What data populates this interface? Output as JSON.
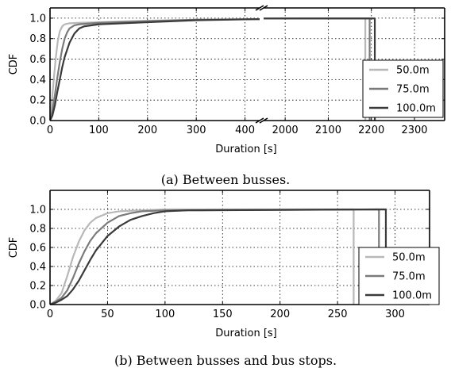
{
  "figure": {
    "caption_a": "(a) Between busses.",
    "caption_b": "(b) Between busses and bus stops."
  },
  "chart_data": [
    {
      "type": "line",
      "subplot": "a",
      "broken_x_axis": true,
      "xlabel": "Duration [s]",
      "ylabel": "CDF",
      "ylim": [
        0,
        1.1
      ],
      "yticks": [
        0.0,
        0.2,
        0.4,
        0.6,
        0.8,
        1.0
      ],
      "left_panel": {
        "xlim": [
          0,
          430
        ],
        "xticks": [
          0,
          100,
          200,
          300,
          400
        ]
      },
      "right_panel": {
        "xlim": [
          1950,
          2370
        ],
        "xticks": [
          2000,
          2100,
          2200,
          2300
        ]
      },
      "grid": true,
      "legend": "bottom-right",
      "colors": {
        "50.0m": "#b8b8b8",
        "75.0m": "#7a7a7a",
        "100.0m": "#3a3a3a"
      },
      "series": [
        {
          "name": "50.0m",
          "x": [
            0,
            4,
            8,
            12,
            16,
            20,
            25,
            30,
            40,
            60,
            100,
            200,
            300,
            420,
            2186,
            2186
          ],
          "y": [
            0,
            0.2,
            0.42,
            0.62,
            0.78,
            0.87,
            0.92,
            0.94,
            0.95,
            0.955,
            0.96,
            0.975,
            0.985,
            0.99,
            0.998,
            0
          ]
        },
        {
          "name": "75.0m",
          "x": [
            0,
            5,
            10,
            15,
            20,
            25,
            30,
            35,
            40,
            50,
            60,
            100,
            200,
            300,
            420,
            2196,
            2196
          ],
          "y": [
            0,
            0.1,
            0.25,
            0.42,
            0.57,
            0.7,
            0.8,
            0.86,
            0.9,
            0.93,
            0.94,
            0.955,
            0.97,
            0.985,
            0.99,
            0.998,
            0
          ]
        },
        {
          "name": "100.0m",
          "x": [
            0,
            5,
            10,
            15,
            20,
            25,
            30,
            40,
            50,
            60,
            70,
            100,
            200,
            300,
            420,
            2208,
            2208
          ],
          "y": [
            0,
            0.05,
            0.15,
            0.28,
            0.4,
            0.52,
            0.62,
            0.76,
            0.85,
            0.9,
            0.92,
            0.94,
            0.96,
            0.98,
            0.99,
            0.998,
            0
          ]
        }
      ]
    },
    {
      "type": "line",
      "subplot": "b",
      "xlabel": "Duration [s]",
      "ylabel": "CDF",
      "xlim": [
        0,
        330
      ],
      "ylim": [
        0,
        1.2
      ],
      "xticks": [
        0,
        50,
        100,
        150,
        200,
        250,
        300
      ],
      "yticks": [
        0.0,
        0.2,
        0.4,
        0.6,
        0.8,
        1.0
      ],
      "grid": true,
      "legend": "bottom-right",
      "colors": {
        "50.0m": "#b8b8b8",
        "75.0m": "#7a7a7a",
        "100.0m": "#3a3a3a"
      },
      "series": [
        {
          "name": "50.0m",
          "x": [
            0,
            5,
            10,
            15,
            20,
            25,
            30,
            35,
            40,
            50,
            60,
            80,
            100,
            264,
            264
          ],
          "y": [
            0,
            0.04,
            0.12,
            0.3,
            0.5,
            0.66,
            0.78,
            0.86,
            0.91,
            0.96,
            0.98,
            0.99,
            1.0,
            1.0,
            0
          ]
        },
        {
          "name": "75.0m",
          "x": [
            0,
            5,
            10,
            15,
            20,
            25,
            30,
            35,
            40,
            50,
            60,
            70,
            80,
            100,
            286,
            286
          ],
          "y": [
            0,
            0.03,
            0.07,
            0.15,
            0.28,
            0.43,
            0.56,
            0.67,
            0.75,
            0.86,
            0.93,
            0.96,
            0.98,
            0.99,
            1.0,
            0
          ]
        },
        {
          "name": "100.0m",
          "x": [
            0,
            5,
            10,
            15,
            20,
            25,
            30,
            35,
            40,
            50,
            60,
            70,
            80,
            90,
            100,
            120,
            292,
            292
          ],
          "y": [
            0,
            0.02,
            0.05,
            0.09,
            0.16,
            0.25,
            0.36,
            0.47,
            0.57,
            0.72,
            0.82,
            0.89,
            0.93,
            0.96,
            0.98,
            0.99,
            1.0,
            0
          ]
        }
      ]
    }
  ]
}
